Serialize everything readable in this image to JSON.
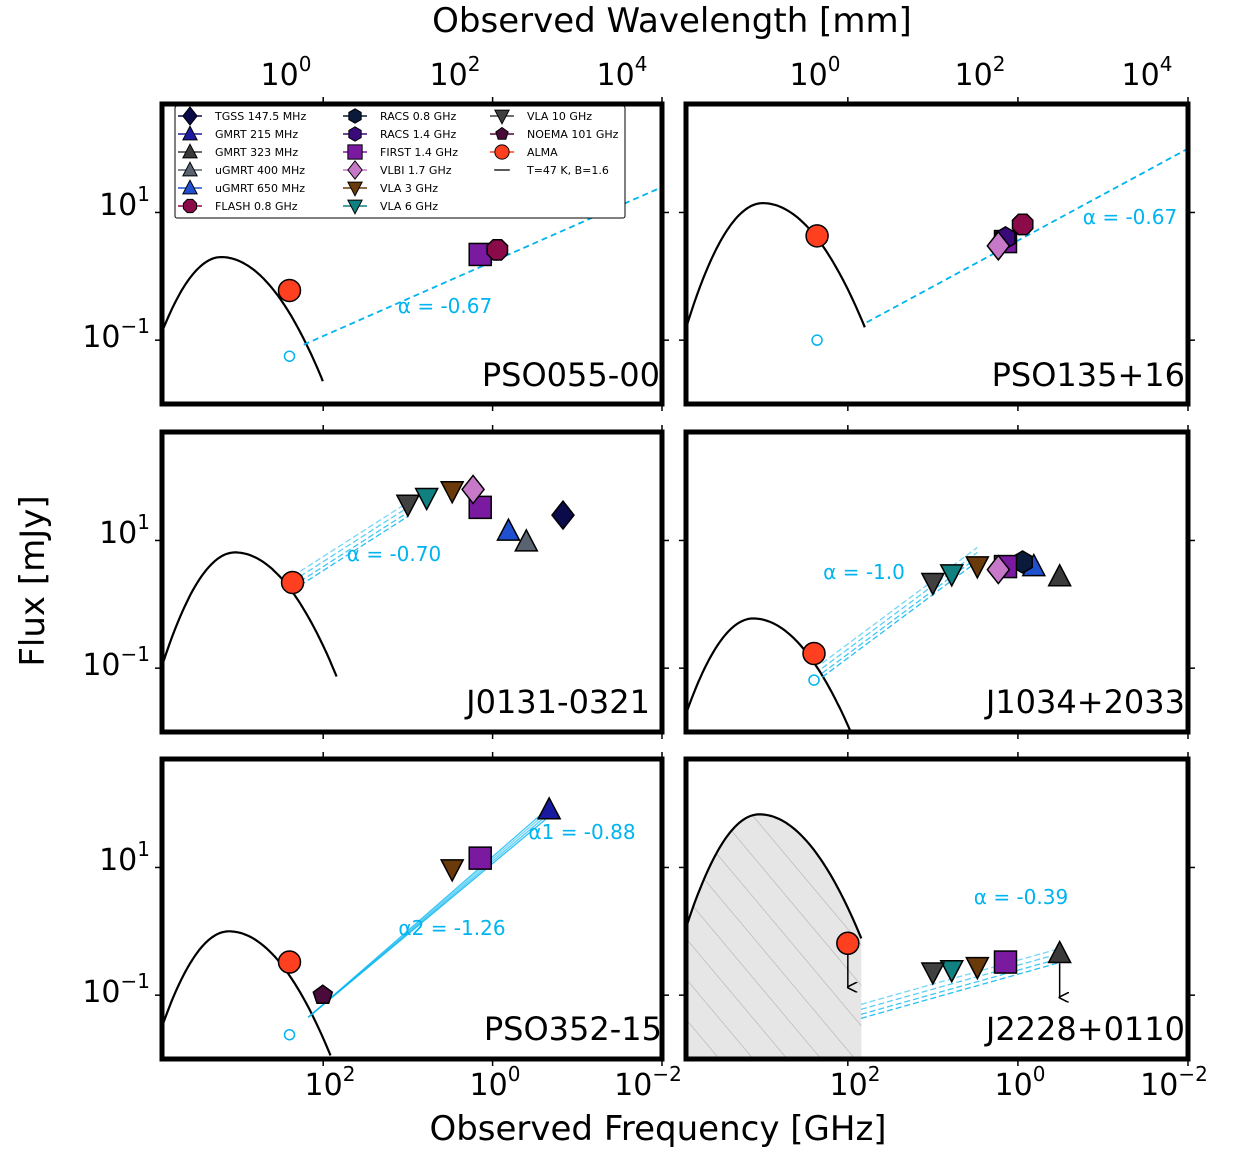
{
  "figure": {
    "top_axis_title": "Observed Wavelength [mm]",
    "bottom_axis_title": "Observed Frequency [GHz]",
    "y_axis_title": "Flux [mJy]",
    "top_ticks": [
      "10^0",
      "10^2",
      "10^4"
    ],
    "bottom_ticks": [
      "10^2",
      "10^0",
      "10^-2"
    ],
    "y_ticks": [
      "10^1",
      "10^-1"
    ]
  },
  "legend": [
    {
      "label": "TGSS 147.5 MHz",
      "marker": "diamond",
      "color": "#0b0b4b"
    },
    {
      "label": "GMRT 215 MHz",
      "marker": "triangle-up",
      "color": "#1a1aa0"
    },
    {
      "label": "GMRT 323 MHz",
      "marker": "triangle-up",
      "color": "#3a3a3a"
    },
    {
      "label": "uGMRT 400 MHz",
      "marker": "triangle-up",
      "color": "#5a6470"
    },
    {
      "label": "uGMRT 650 MHz",
      "marker": "triangle-up",
      "color": "#1f50d0"
    },
    {
      "label": "FLASH 0.8 GHz",
      "marker": "octagon",
      "color": "#8a0a4a"
    },
    {
      "label": "RACS 0.8 GHz",
      "marker": "hexagon",
      "color": "#0a1a3a"
    },
    {
      "label": "RACS 1.4 GHz",
      "marker": "hexagon",
      "color": "#3a0a7a"
    },
    {
      "label": "FIRST 1.4 GHz",
      "marker": "square",
      "color": "#7a1aa0"
    },
    {
      "label": "VLBI 1.7 GHz",
      "marker": "diamond",
      "color": "#c878c8"
    },
    {
      "label": "VLA 3 GHz",
      "marker": "triangle-down",
      "color": "#6a3a0a"
    },
    {
      "label": "VLA 6 GHz",
      "marker": "triangle-down",
      "color": "#108080"
    },
    {
      "label": "VLA 10 GHz",
      "marker": "triangle-down",
      "color": "#404040"
    },
    {
      "label": "NOEMA 101 GHz",
      "marker": "pentagon",
      "color": "#4a0a3a"
    },
    {
      "label": "ALMA",
      "marker": "circle",
      "color": "#ff4020"
    },
    {
      "label": "T=47 K, B=1.6",
      "marker": "line",
      "color": "#000000"
    }
  ],
  "chart_data": [
    {
      "type": "scatter",
      "source": "PSO055-00",
      "alpha_labels": [
        "α = -0.67"
      ],
      "dust_sed": {
        "peak_ghz": 1600,
        "peak_mjy": 2.0
      },
      "points": [
        {
          "marker": "square",
          "color": "#7a1aa0",
          "freq_ghz": 1.4,
          "flux_mjy": 2.2
        },
        {
          "marker": "octagon",
          "color": "#8a0a4a",
          "freq_ghz": 0.88,
          "flux_mjy": 2.6
        },
        {
          "marker": "circle",
          "color": "#ff4020",
          "freq_ghz": 250,
          "flux_mjy": 0.6
        },
        {
          "marker": "open-circle",
          "color": "#00b4f0",
          "freq_ghz": 250,
          "flux_mjy": 0.056
        }
      ],
      "fit_lines": [
        {
          "alpha": -0.67,
          "from_ghz": 170,
          "to_ghz": 0.01,
          "from_mjy": 0.085,
          "to_mjy": 25
        }
      ]
    },
    {
      "type": "scatter",
      "source": "PSO135+16",
      "alpha_labels": [
        "α = -0.67"
      ],
      "dust_sed": {
        "peak_ghz": 1000,
        "peak_mjy": 14
      },
      "points": [
        {
          "marker": "square",
          "color": "#7a1aa0",
          "freq_ghz": 1.4,
          "flux_mjy": 3.5
        },
        {
          "marker": "hexagon",
          "color": "#3a0a7a",
          "freq_ghz": 1.4,
          "flux_mjy": 4.0
        },
        {
          "marker": "octagon",
          "color": "#8a0a4a",
          "freq_ghz": 0.88,
          "flux_mjy": 6.5
        },
        {
          "marker": "diamond",
          "color": "#c878c8",
          "freq_ghz": 1.7,
          "flux_mjy": 3.0
        },
        {
          "marker": "circle",
          "color": "#ff4020",
          "freq_ghz": 230,
          "flux_mjy": 4.3
        },
        {
          "marker": "open-circle",
          "color": "#00b4f0",
          "freq_ghz": 230,
          "flux_mjy": 0.1
        }
      ],
      "fit_lines": [
        {
          "alpha": -0.67,
          "from_ghz": 60,
          "to_ghz": 0.01,
          "from_mjy": 0.19,
          "to_mjy": 100
        }
      ]
    },
    {
      "type": "scatter",
      "source": "J0131-0321",
      "alpha_labels": [
        "α = -0.70"
      ],
      "dust_sed": {
        "peak_ghz": 1100,
        "peak_mjy": 6.5
      },
      "points": [
        {
          "marker": "diamond",
          "color": "#0b0b4b",
          "freq_ghz": 0.1475,
          "flux_mjy": 25
        },
        {
          "marker": "triangle-up",
          "color": "#1f50d0",
          "freq_ghz": 0.65,
          "flux_mjy": 14
        },
        {
          "marker": "triangle-up",
          "color": "#5a6470",
          "freq_ghz": 0.4,
          "flux_mjy": 9.5
        },
        {
          "marker": "square",
          "color": "#7a1aa0",
          "freq_ghz": 1.4,
          "flux_mjy": 33
        },
        {
          "marker": "diamond",
          "color": "#c878c8",
          "freq_ghz": 1.7,
          "flux_mjy": 63
        },
        {
          "marker": "triangle-down",
          "color": "#6a3a0a",
          "freq_ghz": 3,
          "flux_mjy": 60
        },
        {
          "marker": "triangle-down",
          "color": "#108080",
          "freq_ghz": 6,
          "flux_mjy": 47
        },
        {
          "marker": "triangle-down",
          "color": "#404040",
          "freq_ghz": 10,
          "flux_mjy": 37
        },
        {
          "marker": "circle",
          "color": "#ff4020",
          "freq_ghz": 230,
          "flux_mjy": 2.2
        }
      ],
      "fit_lines": [
        {
          "alpha": -0.7,
          "from_ghz": 230,
          "to_ghz": 10,
          "from_mjy": 2.3,
          "to_mjy": 33
        }
      ]
    },
    {
      "type": "scatter",
      "source": "J1034+2033",
      "alpha_labels": [
        "α = -1.0"
      ],
      "dust_sed": {
        "peak_ghz": 1300,
        "peak_mjy": 0.6
      },
      "points": [
        {
          "marker": "triangle-up",
          "color": "#3a3a3a",
          "freq_ghz": 0.323,
          "flux_mjy": 2.7
        },
        {
          "marker": "triangle-up",
          "color": "#1f50d0",
          "freq_ghz": 0.65,
          "flux_mjy": 3.9
        },
        {
          "marker": "hexagon",
          "color": "#0a1a3a",
          "freq_ghz": 0.88,
          "flux_mjy": 4.6
        },
        {
          "marker": "square",
          "color": "#7a1aa0",
          "freq_ghz": 1.4,
          "flux_mjy": 3.9
        },
        {
          "marker": "diamond",
          "color": "#c878c8",
          "freq_ghz": 1.7,
          "flux_mjy": 3.5
        },
        {
          "marker": "triangle-down",
          "color": "#6a3a0a",
          "freq_ghz": 3,
          "flux_mjy": 4.0
        },
        {
          "marker": "triangle-down",
          "color": "#108080",
          "freq_ghz": 6,
          "flux_mjy": 3.0
        },
        {
          "marker": "triangle-down",
          "color": "#404040",
          "freq_ghz": 10,
          "flux_mjy": 2.2
        },
        {
          "marker": "circle",
          "color": "#ff4020",
          "freq_ghz": 250,
          "flux_mjy": 0.17
        },
        {
          "marker": "open-circle",
          "color": "#00b4f0",
          "freq_ghz": 250,
          "flux_mjy": 0.065
        }
      ],
      "fit_lines": [
        {
          "alpha": -1.0,
          "from_ghz": 200,
          "to_ghz": 3,
          "from_mjy": 0.1,
          "to_mjy": 6.5
        }
      ]
    },
    {
      "type": "scatter",
      "source": "PSO352-15",
      "alpha_labels": [
        "α1 = -0.88",
        "α2 = -1.26"
      ],
      "dust_sed": {
        "peak_ghz": 1300,
        "peak_mjy": 1.0
      },
      "points": [
        {
          "marker": "triangle-up",
          "color": "#1a1aa0",
          "freq_ghz": 0.215,
          "flux_mjy": 80
        },
        {
          "marker": "square",
          "color": "#7a1aa0",
          "freq_ghz": 1.4,
          "flux_mjy": 14
        },
        {
          "marker": "triangle-down",
          "color": "#6a3a0a",
          "freq_ghz": 3,
          "flux_mjy": 9.5
        },
        {
          "marker": "pentagon",
          "color": "#4a0a3a",
          "freq_ghz": 101,
          "flux_mjy": 0.1
        },
        {
          "marker": "circle",
          "color": "#ff4020",
          "freq_ghz": 250,
          "flux_mjy": 0.33
        },
        {
          "marker": "open-circle",
          "color": "#00b4f0",
          "freq_ghz": 250,
          "flux_mjy": 0.024
        }
      ],
      "fit_lines": [
        {
          "alpha": -0.88,
          "from_ghz": 150,
          "to_ghz": 0.2,
          "from_mjy": 0.045,
          "to_mjy": 85
        }
      ]
    },
    {
      "type": "scatter",
      "source": "J2228+0110",
      "alpha_labels": [
        "α = -0.39"
      ],
      "dust_sed": {
        "peak_ghz": 1100,
        "peak_mjy": 68,
        "shaded": true
      },
      "points": [
        {
          "marker": "triangle-up",
          "color": "#3a3a3a",
          "freq_ghz": 0.323,
          "flux_mjy": 0.45,
          "upper_limit": true
        },
        {
          "marker": "square",
          "color": "#7a1aa0",
          "freq_ghz": 1.4,
          "flux_mjy": 0.33
        },
        {
          "marker": "triangle-down",
          "color": "#6a3a0a",
          "freq_ghz": 3,
          "flux_mjy": 0.28
        },
        {
          "marker": "triangle-down",
          "color": "#108080",
          "freq_ghz": 6,
          "flux_mjy": 0.25
        },
        {
          "marker": "triangle-down",
          "color": "#404040",
          "freq_ghz": 10,
          "flux_mjy": 0.23
        },
        {
          "marker": "circle",
          "color": "#ff4020",
          "freq_ghz": 100,
          "flux_mjy": 0.65,
          "upper_limit": true
        }
      ],
      "fit_lines": [
        {
          "alpha": -0.39,
          "from_ghz": 70,
          "to_ghz": 0.32,
          "from_mjy": 0.06,
          "to_mjy": 0.45
        }
      ]
    }
  ]
}
